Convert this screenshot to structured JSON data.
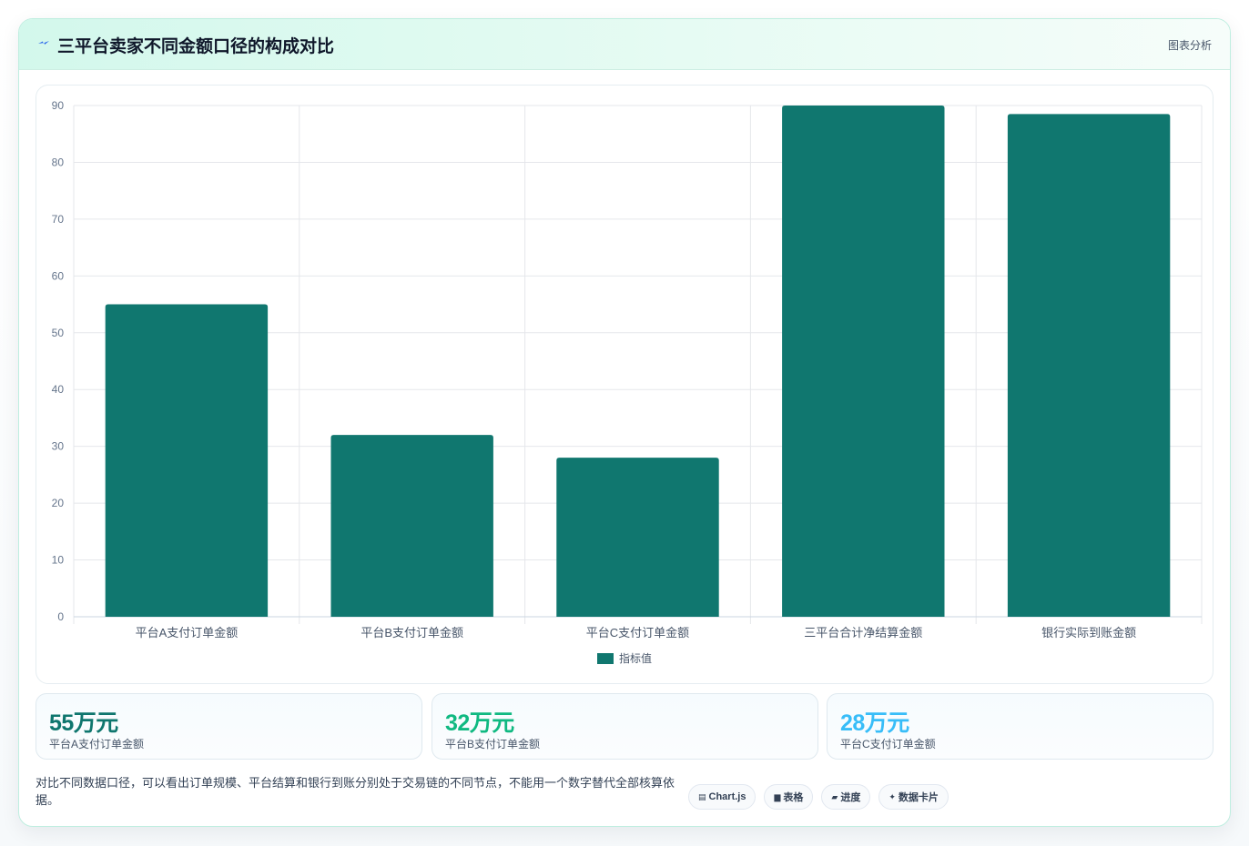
{
  "card": {
    "title": "三平台卖家不同金额口径的构成对比",
    "tag": "图表分析",
    "title_icon": "lightning-icon",
    "accent_color": "#0f766e"
  },
  "chart_data": {
    "type": "bar",
    "categories": [
      "平台A支付订单金额",
      "平台B支付订单金额",
      "平台C支付订单金额",
      "三平台合计净结算金额",
      "银行实际到账金额"
    ],
    "series": [
      {
        "name": "指标值",
        "values": [
          55,
          32,
          28,
          90,
          88.5
        ],
        "color": "#10776f"
      }
    ],
    "ylim": [
      0,
      90
    ],
    "yticks": [
      0,
      10,
      20,
      30,
      40,
      50,
      60,
      70,
      80,
      90
    ],
    "grid": true,
    "legend": "bottom"
  },
  "metrics": [
    {
      "value": "55万元",
      "label": "平台A支付订单金额",
      "color": "#0f766e"
    },
    {
      "value": "32万元",
      "label": "平台B支付订单金额",
      "color": "#10b981"
    },
    {
      "value": "28万元",
      "label": "平台C支付订单金额",
      "color": "#38bdf8"
    }
  ],
  "note": "对比不同数据口径，可以看出订单规模、平台结算和银行到账分别处于交易链的不同节点，不能用一个数字替代全部核算依据。",
  "chips": [
    {
      "icon": "chart-icon",
      "glyph": "▤",
      "label": "Chart.js"
    },
    {
      "icon": "table-icon",
      "glyph": "▆",
      "label": "表格"
    },
    {
      "icon": "progress-icon",
      "glyph": "▰",
      "label": "进度"
    },
    {
      "icon": "sparkle-icon",
      "glyph": "✦",
      "label": "数据卡片"
    }
  ]
}
